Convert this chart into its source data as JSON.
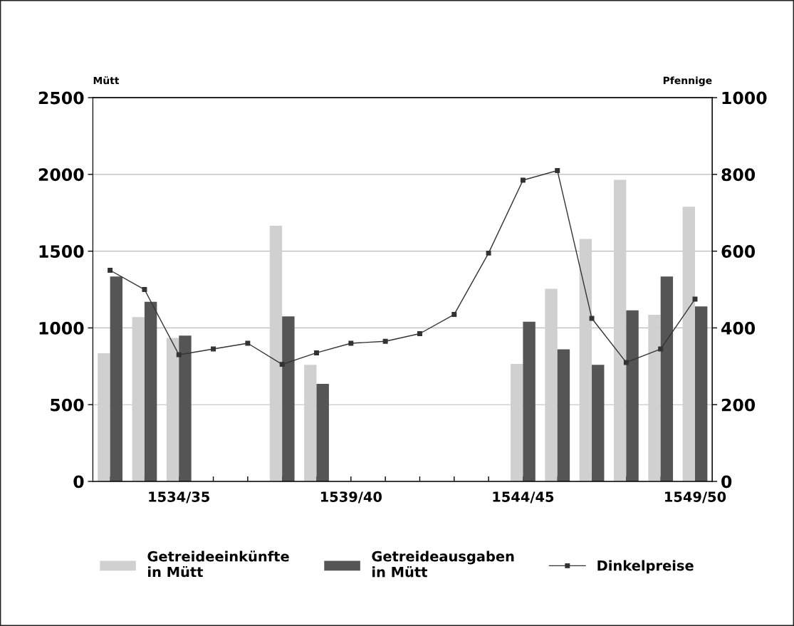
{
  "chart_data": {
    "type": "bar",
    "ylabel": "Mütt",
    "y2label": "Pfennige",
    "categories": [
      null,
      null,
      "1534/35",
      null,
      null,
      null,
      null,
      "1539/40",
      null,
      null,
      null,
      null,
      "1544/45",
      null,
      null,
      null,
      null,
      "1549/50"
    ],
    "series": [
      {
        "name": "Getreideeinkünfte\nin Mütt",
        "color": "#d0d0d0",
        "values": [
          835,
          1070,
          935,
          null,
          null,
          1665,
          760,
          null,
          null,
          null,
          null,
          null,
          765,
          1255,
          1580,
          1965,
          1085,
          1790
        ]
      },
      {
        "name": "Getreideausgaben\nin Mütt",
        "color": "#555555",
        "values": [
          1335,
          1170,
          950,
          null,
          null,
          1075,
          635,
          null,
          null,
          null,
          null,
          null,
          1040,
          860,
          760,
          1115,
          1335,
          1140
        ]
      },
      {
        "name": "Dinkelpreise",
        "type": "line",
        "axis": "y2",
        "color": "#333333",
        "marker": "square",
        "values": [
          550,
          500,
          330,
          345,
          360,
          305,
          335,
          360,
          365,
          385,
          435,
          595,
          785,
          810,
          425,
          310,
          345,
          475
        ]
      }
    ],
    "ylim": [
      0,
      2500
    ],
    "yticks": [
      0,
      500,
      1000,
      1500,
      2000,
      2500
    ],
    "y2lim": [
      0,
      1000
    ],
    "y2ticks": [
      0,
      200,
      400,
      600,
      800,
      1000
    ],
    "grid": "y",
    "legend": "bottom"
  }
}
